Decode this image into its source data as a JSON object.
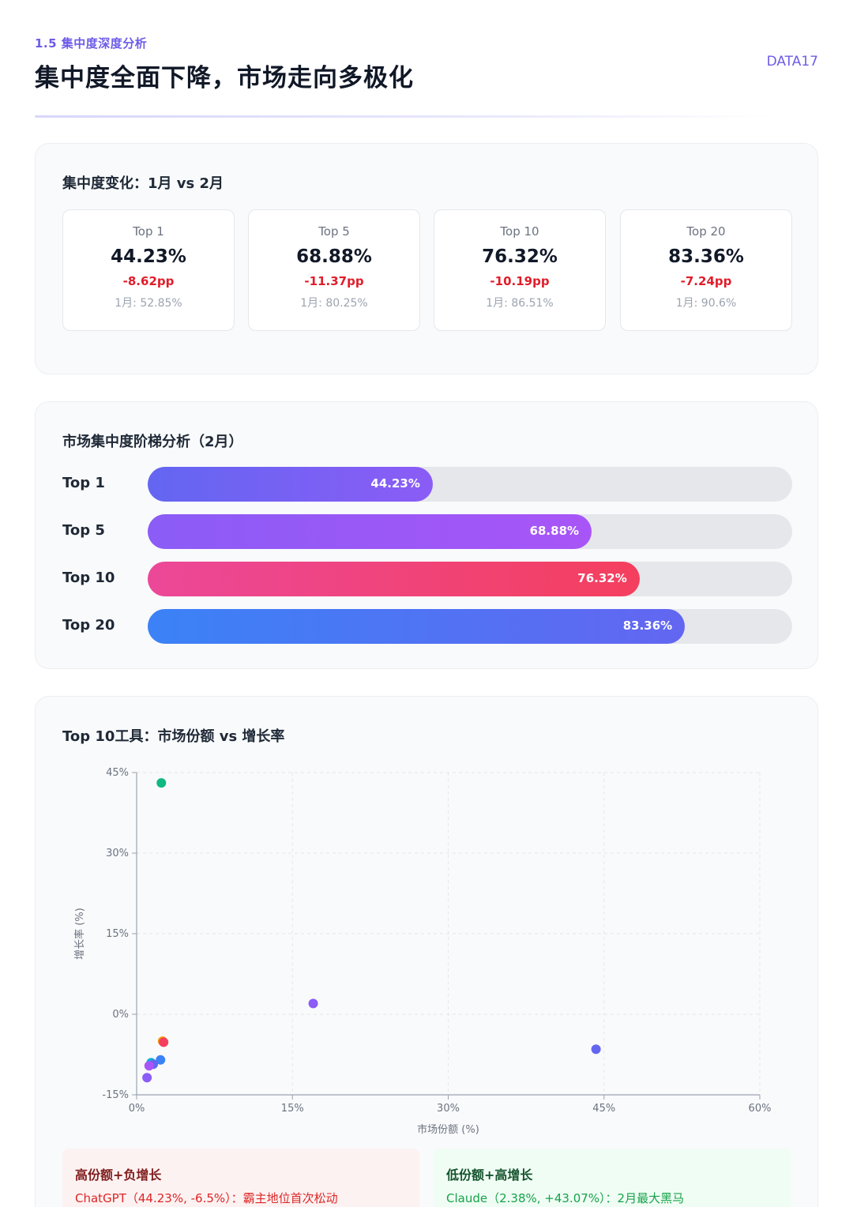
{
  "header": {
    "section": "1.5 集中度深度分析",
    "title": "集中度全面下降，市场走向多极化",
    "brand": "DATA17"
  },
  "concentration_change": {
    "title": "集中度变化：1月 vs 2月",
    "cards": [
      {
        "label": "Top 1",
        "value": "44.23%",
        "delta": "-8.62pp",
        "prev": "1月: 52.85%"
      },
      {
        "label": "Top 5",
        "value": "68.88%",
        "delta": "-11.37pp",
        "prev": "1月: 80.25%"
      },
      {
        "label": "Top 10",
        "value": "76.32%",
        "delta": "-10.19pp",
        "prev": "1月: 86.51%"
      },
      {
        "label": "Top 20",
        "value": "83.36%",
        "delta": "-7.24pp",
        "prev": "1月: 90.6%"
      }
    ]
  },
  "tiers": {
    "title": "市场集中度阶梯分析（2月）",
    "rows": [
      {
        "label": "Top 1",
        "value": 44.23,
        "text": "44.23%",
        "gradient": [
          "#6366f1",
          "#8b5cf6"
        ]
      },
      {
        "label": "Top 5",
        "value": 68.88,
        "text": "68.88%",
        "gradient": [
          "#8b5cf6",
          "#a855f7"
        ]
      },
      {
        "label": "Top 10",
        "value": 76.32,
        "text": "76.32%",
        "gradient": [
          "#ec4899",
          "#f43f5e"
        ]
      },
      {
        "label": "Top 20",
        "value": 83.36,
        "text": "83.36%",
        "gradient": [
          "#3b82f6",
          "#6366f1"
        ]
      }
    ]
  },
  "scatter": {
    "title": "Top 10工具：市场份额 vs 增长率",
    "chart_data": {
      "type": "scatter",
      "title": "Top 10工具：市场份额 vs 增长率",
      "xlabel": "市场份额 (%)",
      "ylabel": "增长率 (%)",
      "xlim": [
        0,
        60
      ],
      "ylim": [
        -15,
        45
      ],
      "xticks": [
        0,
        15,
        30,
        45,
        60
      ],
      "yticks": [
        -15,
        0,
        15,
        30,
        45
      ],
      "xtick_labels": [
        "0%",
        "15%",
        "30%",
        "45%",
        "60%"
      ],
      "ytick_labels": [
        "-15%",
        "0%",
        "15%",
        "30%",
        "45%"
      ],
      "grid": true,
      "points": [
        {
          "x": 2.38,
          "y": 43.07,
          "color": "#10b981"
        },
        {
          "x": 17.0,
          "y": 2.0,
          "color": "#8b5cf6"
        },
        {
          "x": 44.23,
          "y": -6.5,
          "color": "#6366f1"
        },
        {
          "x": 2.5,
          "y": -5.0,
          "color": "#f59e0b"
        },
        {
          "x": 2.6,
          "y": -5.2,
          "color": "#f43f5e"
        },
        {
          "x": 2.3,
          "y": -8.5,
          "color": "#3b82f6"
        },
        {
          "x": 1.4,
          "y": -9.0,
          "color": "#06b6d4"
        },
        {
          "x": 1.6,
          "y": -9.3,
          "color": "#6366f1"
        },
        {
          "x": 1.2,
          "y": -9.6,
          "color": "#a855f7"
        },
        {
          "x": 1.0,
          "y": -11.8,
          "color": "#8b5cf6"
        }
      ]
    }
  },
  "notes": {
    "high": {
      "title": "高份额+负增长",
      "text": "ChatGPT（44.23%, -6.5%）：霸主地位首次松动"
    },
    "low": {
      "title": "低份额+高增长",
      "text": "Claude（2.38%, +43.07%）：2月最大黑马"
    }
  }
}
